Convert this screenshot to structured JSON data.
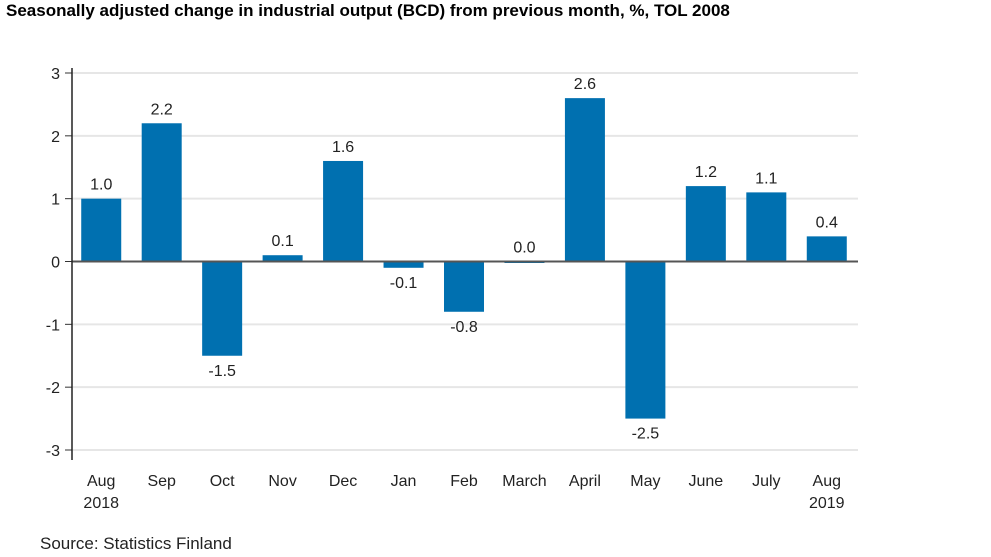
{
  "chart_data": {
    "type": "bar",
    "title": "Seasonally adjusted change in industrial output (BCD) from previous month, %, TOL 2008",
    "source": "Source: Statistics Finland",
    "categories": [
      [
        "Aug",
        "2018"
      ],
      [
        "Sep"
      ],
      [
        "Oct"
      ],
      [
        "Nov"
      ],
      [
        "Dec"
      ],
      [
        "Jan"
      ],
      [
        "Feb"
      ],
      [
        "March"
      ],
      [
        "April"
      ],
      [
        "May"
      ],
      [
        "June"
      ],
      [
        "July"
      ],
      [
        "Aug",
        "2019"
      ]
    ],
    "values": [
      1.0,
      2.2,
      -1.5,
      0.1,
      1.6,
      -0.1,
      -0.8,
      0.0,
      2.6,
      -2.5,
      1.2,
      1.1,
      0.4
    ],
    "data_labels": [
      "1.0",
      "2.2",
      "-1.5",
      "0.1",
      "1.6",
      "-0.1",
      "-0.8",
      "0.0",
      "2.6",
      "-2.5",
      "1.2",
      "1.1",
      "0.4"
    ],
    "xlabel": "",
    "ylabel": "",
    "ylim": [
      -3,
      3
    ],
    "yticks": [
      3,
      2,
      1,
      0,
      -1,
      -2,
      -3
    ],
    "grid": true,
    "legend": "none",
    "bar_color": "#0070b0"
  }
}
